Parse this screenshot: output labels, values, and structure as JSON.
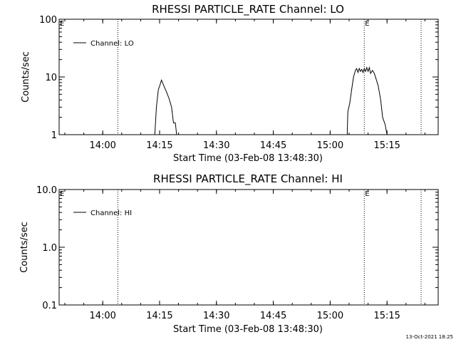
{
  "figure": {
    "timestamp": "13-Oct-2021 18:25"
  },
  "chart_data": [
    {
      "type": "line",
      "title": "RHESSI PARTICLE_RATE Channel: LO",
      "xlabel": "Start Time (03-Feb-08 13:48:30)",
      "ylabel": "Counts/sec",
      "yscale": "log",
      "ylim": [
        1,
        100
      ],
      "xlim": [
        "13:48:30",
        "15:28:30"
      ],
      "x_ticks": [
        "14:00",
        "14:15",
        "14:30",
        "14:45",
        "15:00",
        "15:15"
      ],
      "y_ticks": [
        "1",
        "10",
        "100"
      ],
      "legend": {
        "label": "Channel: LO",
        "position": "top-left"
      },
      "markers": [
        {
          "time": "14:04",
          "style": "dotted"
        },
        {
          "time": "15:09",
          "style": "dotted",
          "label": "E"
        },
        {
          "time": "15:24",
          "style": "dotted"
        }
      ],
      "corner_label": "E",
      "series": [
        {
          "name": "Channel: LO",
          "segments": [
            [
              [
                "14:13:45",
                1
              ],
              [
                "14:14:10",
                3.0
              ],
              [
                "14:14:40",
                6.0
              ],
              [
                "14:15:10",
                7.5
              ],
              [
                "14:15:30",
                8.8
              ],
              [
                "14:15:50",
                7.8
              ],
              [
                "14:16:20",
                6.5
              ],
              [
                "14:16:50",
                5.5
              ],
              [
                "14:17:30",
                4.2
              ],
              [
                "14:18:10",
                3.0
              ],
              [
                "14:18:40",
                1.6
              ],
              [
                "14:19:10",
                1.6
              ],
              [
                "14:19:30",
                1
              ]
            ],
            [
              [
                "15:04:30",
                1
              ],
              [
                "15:04:40",
                2.5
              ],
              [
                "15:05:10",
                3.5
              ],
              [
                "15:05:40",
                6.0
              ],
              [
                "15:06:10",
                10.0
              ],
              [
                "15:06:40",
                13.0
              ],
              [
                "15:07:00",
                14.0
              ],
              [
                "15:07:20",
                12.0
              ],
              [
                "15:07:40",
                14.0
              ],
              [
                "15:08:00",
                12.5
              ],
              [
                "15:08:20",
                13.5
              ],
              [
                "15:08:40",
                12.0
              ],
              [
                "15:09:00",
                14.0
              ],
              [
                "15:09:20",
                12.5
              ],
              [
                "15:09:40",
                14.5
              ],
              [
                "15:10:00",
                12.5
              ],
              [
                "15:10:20",
                14.5
              ],
              [
                "15:10:40",
                11.5
              ],
              [
                "15:11:10",
                13.0
              ],
              [
                "15:11:40",
                11.5
              ],
              [
                "15:12:10",
                9.0
              ],
              [
                "15:12:40",
                7.0
              ],
              [
                "15:13:20",
                4.0
              ],
              [
                "15:13:50",
                2.0
              ],
              [
                "15:14:30",
                1.5
              ],
              [
                "15:15:00",
                1
              ]
            ]
          ]
        }
      ]
    },
    {
      "type": "line",
      "title": "RHESSI PARTICLE_RATE Channel: HI",
      "xlabel": "Start Time (03-Feb-08 13:48:30)",
      "ylabel": "Counts/sec",
      "yscale": "log",
      "ylim": [
        0.1,
        10
      ],
      "xlim": [
        "13:48:30",
        "15:28:30"
      ],
      "x_ticks": [
        "14:00",
        "14:15",
        "14:30",
        "14:45",
        "15:00",
        "15:15"
      ],
      "y_ticks": [
        "0.1",
        "1.0",
        "10.0"
      ],
      "legend": {
        "label": "Channel: HI",
        "position": "top-left"
      },
      "markers": [
        {
          "time": "14:04",
          "style": "dotted"
        },
        {
          "time": "15:09",
          "style": "dotted",
          "label": "E"
        },
        {
          "time": "15:24",
          "style": "dotted"
        }
      ],
      "corner_label": "E",
      "series": [
        {
          "name": "Channel: HI",
          "segments": []
        }
      ]
    }
  ]
}
